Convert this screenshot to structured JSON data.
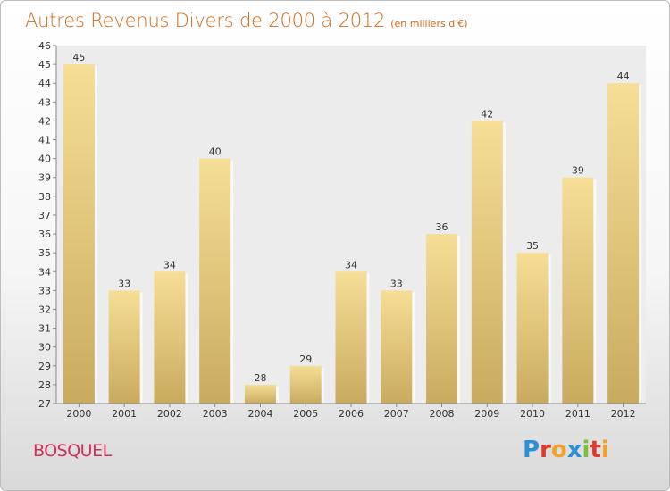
{
  "header": {
    "title": "Autres Revenus Divers de 2000 à 2012",
    "subtitle": "(en milliers d'€)"
  },
  "footer": {
    "place": "BOSQUEL",
    "logo_text": "Proxiti",
    "logo_letters": [
      {
        "ch": "P",
        "color": "#2e8fd4"
      },
      {
        "ch": "r",
        "color": "#e03a2f"
      },
      {
        "ch": "o",
        "color": "#f0a22a"
      },
      {
        "ch": "x",
        "color": "#2e8fd4"
      },
      {
        "ch": "i",
        "color": "#7bbf3a"
      },
      {
        "ch": "t",
        "color": "#e03a2f"
      },
      {
        "ch": "i",
        "color": "#f0a22a"
      }
    ]
  },
  "colors": {
    "title": "#d46a1a",
    "place": "#d42e55",
    "bar_top": "#f6de96",
    "bar_bottom": "#c9ab5f"
  },
  "chart_data": {
    "type": "bar",
    "categories": [
      "2000",
      "2001",
      "2002",
      "2003",
      "2004",
      "2005",
      "2006",
      "2007",
      "2008",
      "2009",
      "2010",
      "2011",
      "2012"
    ],
    "values": [
      45,
      33,
      34,
      40,
      28,
      29,
      34,
      33,
      36,
      42,
      35,
      39,
      44
    ],
    "title": "Autres Revenus Divers de 2000 à 2012",
    "subtitle": "(en milliers d'€)",
    "ylim": [
      27,
      46
    ],
    "yticks": [
      27,
      28,
      29,
      30,
      31,
      32,
      33,
      34,
      35,
      36,
      37,
      38,
      39,
      40,
      41,
      42,
      43,
      44,
      45,
      46
    ],
    "grid": false,
    "data_labels": true
  }
}
